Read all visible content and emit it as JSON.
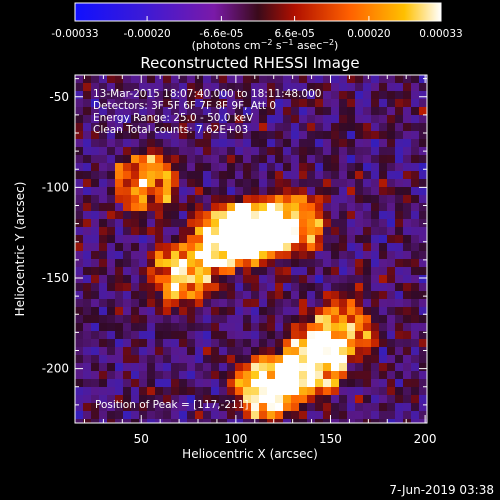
{
  "colorbar": {
    "tick_labels": [
      "-0.00033",
      "-0.00020",
      "-6.6e-05",
      "6.6e-05",
      "0.00020",
      "0.00033"
    ],
    "tick_values": [
      -0.00033,
      -0.0002,
      -6.6e-05,
      6.6e-05,
      0.0002,
      0.00033
    ],
    "range": [
      -0.00033,
      0.00033
    ],
    "units_prefix": "(photons cm",
    "units_exp1": "−2",
    "units_mid": " s",
    "units_exp2": "−1",
    "units_mid2": " asec",
    "units_exp3": "−2",
    "units_suffix": ")"
  },
  "title": "Reconstructed RHESSI Image",
  "info": [
    "13-Mar-2015 18:07:40.000 to 18:11:48.000",
    "Detectors: 3F 5F 6F 7F 8F 9F, Att 0",
    "Energy Range: 25.0 - 50.0 keV",
    "Clean      Total counts: 7.62E+03"
  ],
  "peak_label": "Position of Peak = [117,-211]",
  "footer_date": "7-Jun-2019 03:38",
  "colors": {
    "background": "#000000",
    "text": "#ffffff"
  },
  "chart_data": {
    "type": "heatmap",
    "title": "Reconstructed RHESSI Image",
    "xlabel": "Heliocentric X (arcsec)",
    "ylabel": "Heliocentric Y (arcsec)",
    "xlim": [
      15,
      201
    ],
    "ylim": [
      -230,
      -38
    ],
    "x_ticks": [
      50,
      100,
      150,
      200
    ],
    "y_ticks": [
      -50,
      -100,
      -150,
      -200
    ],
    "x_tick_labels": [
      "50",
      "100",
      "150",
      "200"
    ],
    "y_tick_labels": [
      "-50",
      "-100",
      "-150",
      "-200"
    ],
    "colorscale": "blue-purple-red-orange-yellow-white",
    "bright_sources": [
      {
        "x": 72,
        "y": -148,
        "intensity": 0.8
      },
      {
        "x": 95,
        "y": -128,
        "intensity": 0.9
      },
      {
        "x": 110,
        "y": -125,
        "intensity": 0.85
      },
      {
        "x": 130,
        "y": -120,
        "intensity": 0.75
      },
      {
        "x": 117,
        "y": -211,
        "intensity": 1.0
      },
      {
        "x": 140,
        "y": -197,
        "intensity": 0.95
      },
      {
        "x": 52,
        "y": -98,
        "intensity": 0.7
      },
      {
        "x": 155,
        "y": -180,
        "intensity": 0.7
      }
    ]
  }
}
